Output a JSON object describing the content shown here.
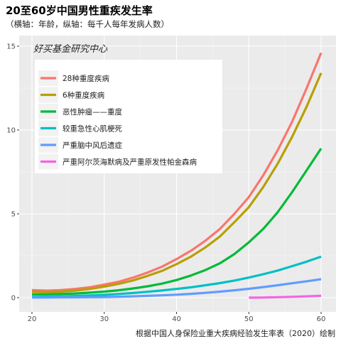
{
  "chart_data": {
    "type": "line",
    "title": "20至60岁中国男性重疾发生率",
    "subtitle": "（横轴：年龄，纵轴：每千人每年发病人数）",
    "caption": "根据中国人身保险业重大疾病经验发生率表（2020）绘制",
    "watermark": "好买基金研究中心",
    "xlabel": "",
    "ylabel": "",
    "xlim": [
      20,
      60
    ],
    "ylim": [
      0,
      15.5
    ],
    "x_ticks": [
      20,
      30,
      40,
      50,
      60
    ],
    "y_ticks": [
      0,
      5,
      10,
      15
    ],
    "grid": true,
    "legend_position": "top-left",
    "series": [
      {
        "name": "28种重度疾病",
        "color": "#F8766D",
        "x": [
          20,
          22,
          24,
          26,
          28,
          30,
          32,
          34,
          36,
          38,
          40,
          42,
          44,
          46,
          48,
          50,
          52,
          54,
          56,
          58,
          60
        ],
        "values": [
          0.45,
          0.42,
          0.45,
          0.52,
          0.62,
          0.78,
          0.95,
          1.2,
          1.5,
          1.85,
          2.3,
          2.8,
          3.4,
          4.1,
          5.0,
          6.0,
          7.3,
          8.8,
          10.5,
          12.5,
          14.6
        ]
      },
      {
        "name": "6种重度疾病",
        "color": "#B79F00",
        "x": [
          20,
          22,
          24,
          26,
          28,
          30,
          32,
          34,
          36,
          38,
          40,
          42,
          44,
          46,
          48,
          50,
          52,
          54,
          56,
          58,
          60
        ],
        "values": [
          0.35,
          0.33,
          0.36,
          0.42,
          0.52,
          0.66,
          0.82,
          1.03,
          1.3,
          1.6,
          2.0,
          2.45,
          3.0,
          3.65,
          4.5,
          5.4,
          6.6,
          8.0,
          9.6,
          11.4,
          13.4
        ]
      },
      {
        "name": "恶性肿瘤——重度",
        "color": "#00BA38",
        "x": [
          20,
          22,
          24,
          26,
          28,
          30,
          32,
          34,
          36,
          38,
          40,
          42,
          44,
          46,
          48,
          50,
          52,
          54,
          56,
          58,
          60
        ],
        "values": [
          0.2,
          0.2,
          0.22,
          0.25,
          0.3,
          0.36,
          0.44,
          0.55,
          0.68,
          0.84,
          1.05,
          1.32,
          1.65,
          2.05,
          2.6,
          3.3,
          4.1,
          5.1,
          6.3,
          7.6,
          8.9
        ]
      },
      {
        "name": "较重急性心肌梗死",
        "color": "#00BFC4",
        "x": [
          20,
          22,
          24,
          26,
          28,
          30,
          32,
          34,
          36,
          38,
          40,
          42,
          44,
          46,
          48,
          50,
          52,
          54,
          56,
          58,
          60
        ],
        "values": [
          0.05,
          0.06,
          0.08,
          0.1,
          0.13,
          0.17,
          0.22,
          0.28,
          0.35,
          0.43,
          0.52,
          0.62,
          0.74,
          0.87,
          1.02,
          1.2,
          1.4,
          1.62,
          1.88,
          2.15,
          2.45
        ]
      },
      {
        "name": "严重脑中风后遗症",
        "color": "#619CFF",
        "x": [
          20,
          22,
          24,
          26,
          28,
          30,
          32,
          34,
          36,
          38,
          40,
          42,
          44,
          46,
          48,
          50,
          52,
          54,
          56,
          58,
          60
        ],
        "values": [
          0.01,
          0.01,
          0.02,
          0.02,
          0.03,
          0.04,
          0.06,
          0.08,
          0.11,
          0.14,
          0.18,
          0.23,
          0.29,
          0.36,
          0.44,
          0.53,
          0.63,
          0.74,
          0.86,
          0.98,
          1.1
        ]
      },
      {
        "name": "严重阿尔茨海默病及严重原发性帕金森病",
        "color": "#F564E3",
        "x": [
          50,
          52,
          54,
          56,
          58,
          60
        ],
        "values": [
          0.0,
          0.01,
          0.03,
          0.05,
          0.08,
          0.11
        ]
      }
    ]
  }
}
